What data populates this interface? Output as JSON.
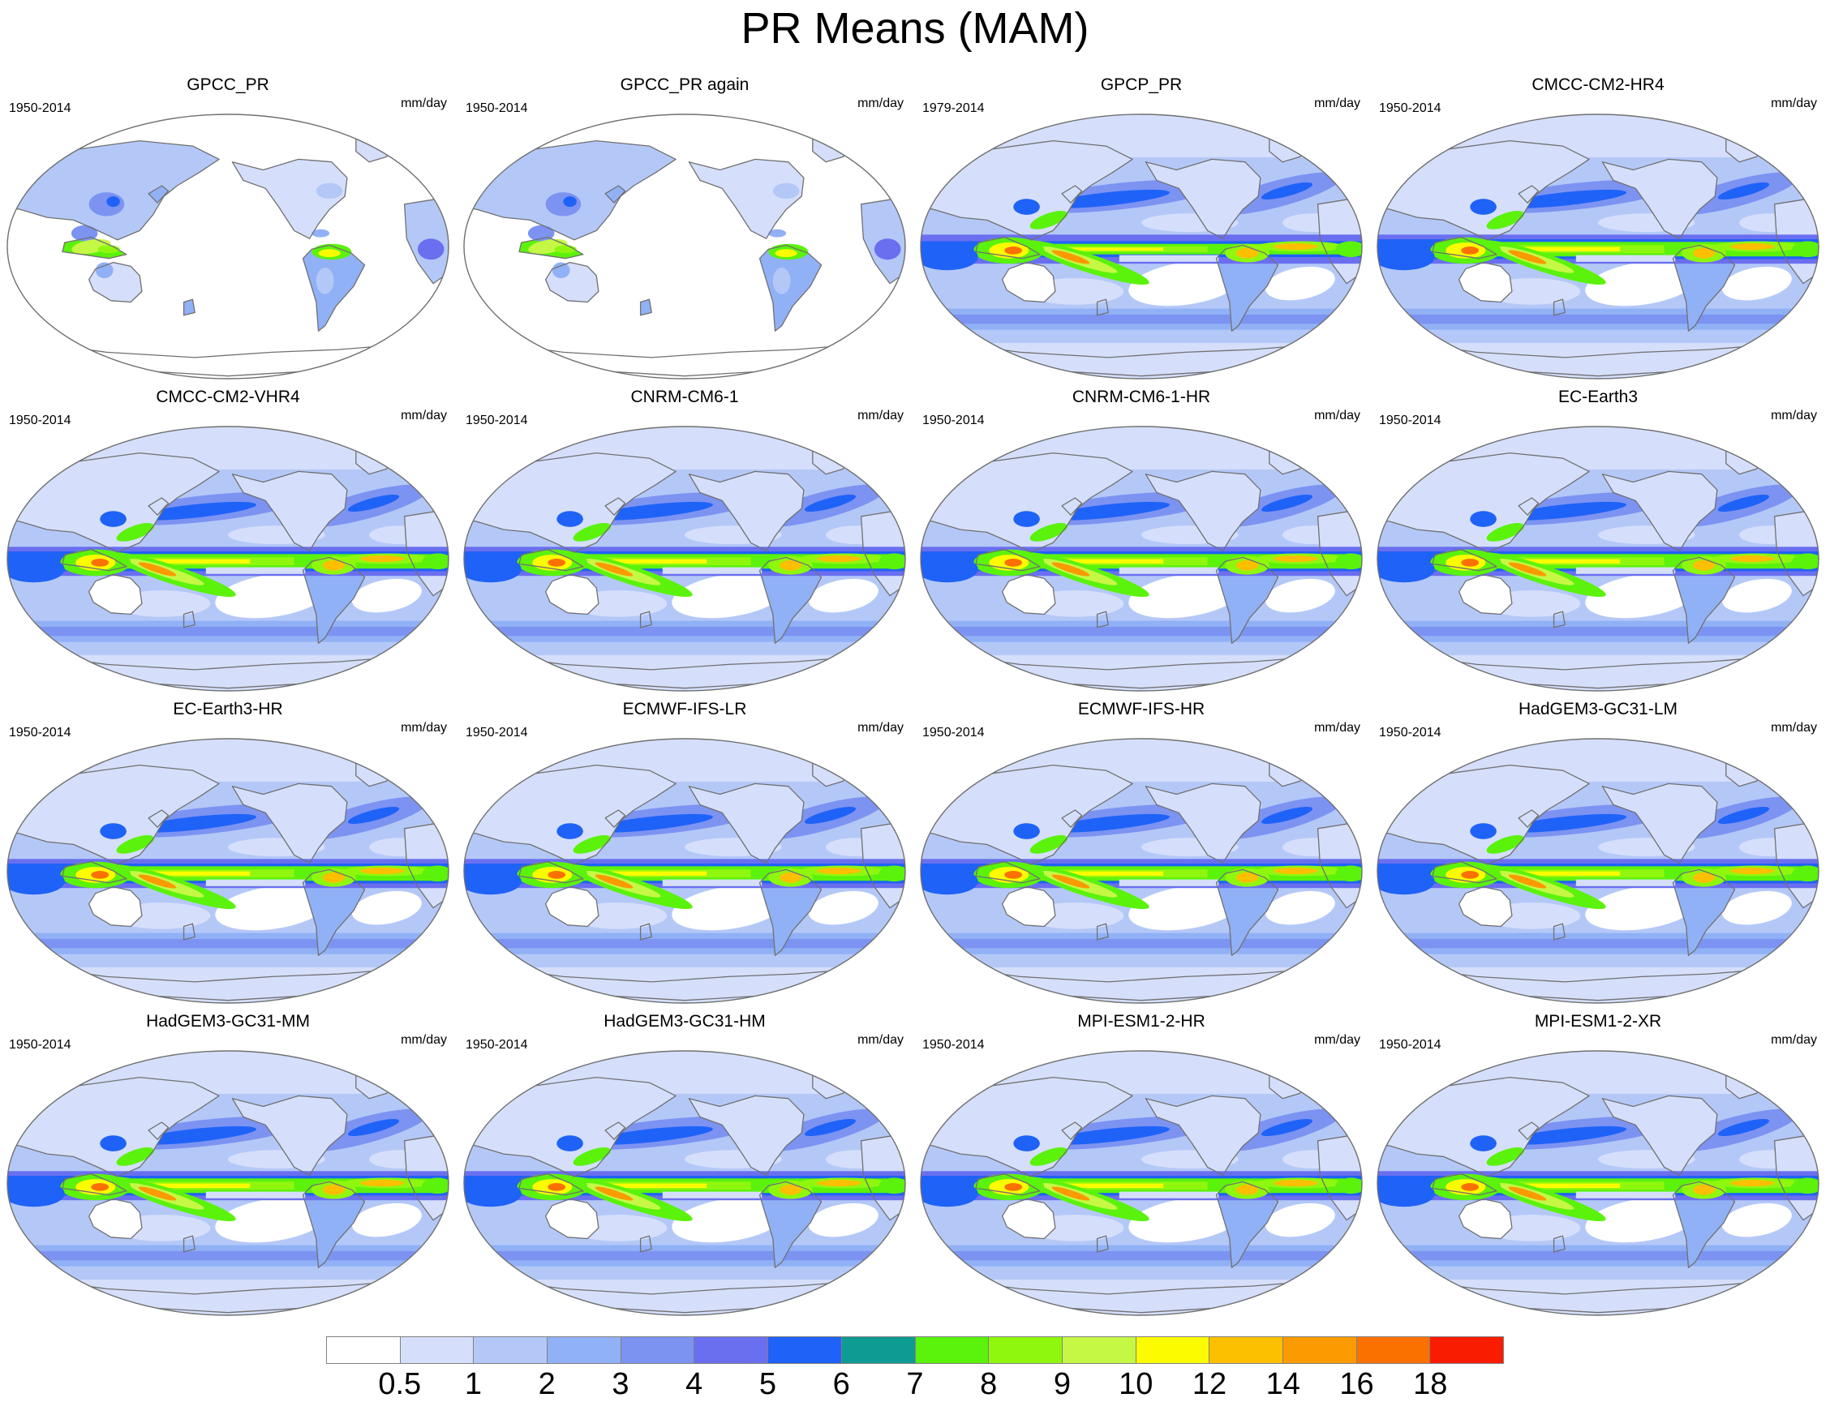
{
  "title": "PR Means (MAM)",
  "units": "mm/day",
  "panels": [
    {
      "title": "GPCC_PR",
      "period": "1950-2014",
      "type": "obs_land"
    },
    {
      "title": "GPCC_PR again",
      "period": "1950-2014",
      "type": "obs_land"
    },
    {
      "title": "GPCP_PR",
      "period": "1979-2014",
      "type": "obs_global"
    },
    {
      "title": "CMCC-CM2-HR4",
      "period": "1950-2014",
      "type": "model"
    },
    {
      "title": "CMCC-CM2-VHR4",
      "period": "1950-2014",
      "type": "model"
    },
    {
      "title": "CNRM-CM6-1",
      "period": "1950-2014",
      "type": "model"
    },
    {
      "title": "CNRM-CM6-1-HR",
      "period": "1950-2014",
      "type": "model"
    },
    {
      "title": "EC-Earth3",
      "period": "1950-2014",
      "type": "model"
    },
    {
      "title": "EC-Earth3-HR",
      "period": "1950-2014",
      "type": "model"
    },
    {
      "title": "ECMWF-IFS-LR",
      "period": "1950-2014",
      "type": "model"
    },
    {
      "title": "ECMWF-IFS-HR",
      "period": "1950-2014",
      "type": "model"
    },
    {
      "title": "HadGEM3-GC31-LM",
      "period": "1950-2014",
      "type": "model"
    },
    {
      "title": "HadGEM3-GC31-MM",
      "period": "1950-2014",
      "type": "model"
    },
    {
      "title": "HadGEM3-GC31-HM",
      "period": "1950-2014",
      "type": "model"
    },
    {
      "title": "MPI-ESM1-2-HR",
      "period": "1950-2014",
      "type": "model"
    },
    {
      "title": "MPI-ESM1-2-XR",
      "period": "1950-2014",
      "type": "model"
    }
  ],
  "colorbar": {
    "labels": [
      "0.5",
      "1",
      "2",
      "3",
      "4",
      "5",
      "6",
      "7",
      "8",
      "9",
      "10",
      "12",
      "14",
      "16",
      "18"
    ],
    "colors": [
      "#ffffff",
      "#d5dffb",
      "#b4c8f8",
      "#91b1f6",
      "#7c93f2",
      "#6a6ff0",
      "#1f62f7",
      "#0e9b94",
      "#5bf20c",
      "#8ff70e",
      "#c5f845",
      "#fdfb00",
      "#fcc001",
      "#fb9a01",
      "#fb7100",
      "#fa1c00"
    ]
  },
  "colors": {
    "coastline": "#707070",
    "map_border": "#707070"
  }
}
